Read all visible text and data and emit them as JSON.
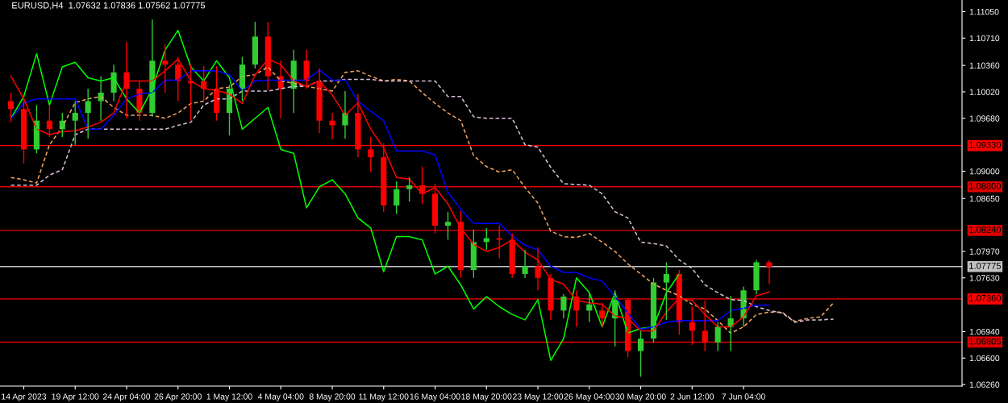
{
  "chart_data": {
    "type": "candlestick",
    "title": "EURUSD,H4  1.07632 1.07836 1.07562 1.07775",
    "categories": [
      null,
      "14 Apr 2023",
      null,
      null,
      null,
      "19 Apr 12:00",
      null,
      null,
      null,
      "24 Apr 04:00",
      null,
      null,
      null,
      "26 Apr 20:00",
      null,
      null,
      null,
      "1 May 12:00",
      null,
      null,
      null,
      "4 May 04:00",
      null,
      null,
      null,
      "8 May 20:00",
      null,
      null,
      null,
      "11 May 12:00",
      null,
      null,
      null,
      "16 May 04:00",
      null,
      null,
      null,
      "18 May 20:00",
      null,
      null,
      null,
      "23 May 12:00",
      null,
      null,
      null,
      "26 May 04:00",
      null,
      null,
      null,
      "30 May 20:00",
      null,
      null,
      null,
      "2 Jun 12:00",
      null,
      null,
      null,
      "7 Jun 04:00",
      null,
      null,
      null,
      null,
      null,
      null,
      null
    ],
    "colors": [
      "#ff0000",
      "#ff0000",
      "#32cd32",
      "#ff0000",
      "#32cd32",
      "#32cd32",
      "#32cd32",
      "#32cd32",
      "#32cd32",
      "#ff0000",
      "#ff0000",
      "#32cd32",
      "#ff0000",
      "#ff0000",
      "#ff0000",
      "#ff0000",
      "#ff0000",
      "#32cd32",
      "#32cd32",
      "#32cd32",
      "#ff0000",
      "#ff0000",
      "#32cd32",
      "#ff0000",
      "#ff0000",
      "#ff0000",
      "#32cd32",
      "#ff0000",
      "#ff0000",
      "#ff0000",
      "#32cd32",
      "#32cd32",
      "#ff0000",
      "#ff0000",
      "#32cd32",
      "#ff0000",
      "#32cd32",
      "#32cd32",
      "#ff0000",
      "#ff0000",
      "#32cd32",
      "#ff0000",
      "#ff0000",
      "#32cd32",
      "#ff0000",
      "#32cd32",
      "#ff0000",
      "#32cd32",
      "#ff0000",
      "#32cd32",
      "#32cd32",
      "#32cd32",
      "#ff0000",
      "#ff0000",
      "#ff0000",
      "#32cd32",
      "#32cd32",
      "#32cd32",
      "#32cd32",
      "#ff0000",
      null,
      null,
      null,
      null,
      null
    ],
    "ohlc": [
      [
        1.099,
        1.1001,
        1.0963,
        1.098
      ],
      [
        1.098,
        1.0996,
        1.091,
        1.0928
      ],
      [
        1.0928,
        1.0985,
        1.0923,
        1.0965
      ],
      [
        1.0965,
        1.0985,
        1.0944,
        1.0954
      ],
      [
        1.0954,
        1.0975,
        1.0944,
        1.0965
      ],
      [
        1.0965,
        1.099,
        1.0934,
        1.0975
      ],
      [
        1.0975,
        1.1006,
        1.0942,
        1.099
      ],
      [
        1.099,
        1.1022,
        1.0965,
        1.1001
      ],
      [
        1.1001,
        1.1037,
        1.099,
        1.1027
      ],
      [
        1.1027,
        1.1066,
        1.0968,
        1.1006
      ],
      [
        1.1006,
        1.1016,
        1.0965,
        1.0975
      ],
      [
        1.0975,
        1.1095,
        1.097,
        1.1042
      ],
      [
        1.1042,
        1.1063,
        1.1001,
        1.1037
      ],
      [
        1.1037,
        1.1047,
        1.099,
        1.1016
      ],
      [
        1.1016,
        1.1037,
        1.0965,
        1.1013
      ],
      [
        1.1016,
        1.1035,
        1.099,
        1.1006
      ],
      [
        1.1006,
        1.1035,
        1.0965,
        1.0975
      ],
      [
        1.0975,
        1.1011,
        1.0946,
        1.1006
      ],
      [
        1.1006,
        1.1047,
        1.099,
        1.1037
      ],
      [
        1.1037,
        1.1092,
        1.1032,
        1.1073
      ],
      [
        1.1073,
        1.1092,
        1.1004,
        1.1022
      ],
      [
        1.1022,
        1.1042,
        1.0968,
        1.1006
      ],
      [
        1.1006,
        1.1056,
        1.0975,
        1.1042
      ],
      [
        1.1042,
        1.1056,
        1.1006,
        1.1016
      ],
      [
        1.1016,
        1.1032,
        1.0949,
        1.0965
      ],
      [
        1.0965,
        1.0975,
        1.0941,
        1.0959
      ],
      [
        1.0959,
        1.1003,
        1.0942,
        1.0975
      ],
      [
        1.0975,
        1.0999,
        1.0918,
        1.0928
      ],
      [
        1.0928,
        1.0944,
        1.0899,
        1.0918
      ],
      [
        1.0918,
        1.0936,
        1.0848,
        1.0856
      ],
      [
        1.0856,
        1.0887,
        1.0845,
        1.0877
      ],
      [
        1.0877,
        1.0892,
        1.0861,
        1.0882
      ],
      [
        1.0882,
        1.0906,
        1.0858,
        1.0871
      ],
      [
        1.0871,
        1.0884,
        1.082,
        1.083
      ],
      [
        1.083,
        1.0848,
        1.0812,
        1.0835
      ],
      [
        1.0835,
        1.0849,
        1.0763,
        1.0773
      ],
      [
        1.0773,
        1.0825,
        1.0763,
        1.0809
      ],
      [
        1.0809,
        1.0827,
        1.0799,
        1.0814
      ],
      [
        1.0814,
        1.083,
        1.0788,
        1.0812
      ],
      [
        1.0812,
        1.082,
        1.0763,
        1.0768
      ],
      [
        1.0768,
        1.0799,
        1.0763,
        1.0778
      ],
      [
        1.0778,
        1.0802,
        1.0747,
        1.0763
      ],
      [
        1.0763,
        1.0768,
        1.0709,
        1.0721
      ],
      [
        1.0721,
        1.0742,
        1.0711,
        1.0739
      ],
      [
        1.0739,
        1.0747,
        1.07,
        1.0721
      ],
      [
        1.0721,
        1.0744,
        1.0706,
        1.0729
      ],
      [
        1.0721,
        1.0731,
        1.07,
        1.0711
      ],
      [
        1.0711,
        1.0747,
        1.0675,
        1.0735
      ],
      [
        1.0735,
        1.0737,
        1.0661,
        1.0669
      ],
      [
        1.0669,
        1.0695,
        1.0636,
        1.0685
      ],
      [
        1.0685,
        1.0763,
        1.068,
        1.0757
      ],
      [
        1.0757,
        1.0783,
        1.0709,
        1.0768
      ],
      [
        1.0768,
        1.0773,
        1.069,
        1.0706
      ],
      [
        1.0706,
        1.0726,
        1.0677,
        1.0695
      ],
      [
        1.0695,
        1.0734,
        1.0669,
        1.068
      ],
      [
        1.068,
        1.0706,
        1.0669,
        1.07
      ],
      [
        1.07,
        1.074,
        1.0669,
        1.0711
      ],
      [
        1.0711,
        1.0752,
        1.07,
        1.0747
      ],
      [
        1.0747,
        1.0786,
        1.0742,
        1.0783
      ],
      [
        1.0783,
        1.0786,
        1.0755,
        1.0777
      ],
      null,
      null,
      null,
      null,
      null
    ],
    "series": [
      {
        "type": "line",
        "color": "#f4a460",
        "line_style": "dashed",
        "values": [
          1.0892,
          1.0889,
          1.0885,
          1.0934,
          1.0957,
          1.0988,
          1.0993,
          1.0996,
          1.0982,
          1.0972,
          1.0972,
          1.0972,
          1.0968,
          1.0975,
          1.0987,
          1.099,
          1.1006,
          1.1008,
          1.1022,
          1.1024,
          1.1034,
          1.1016,
          1.1013,
          1.1009,
          1.1006,
          1.1003,
          1.1027,
          1.1029,
          1.1022,
          1.1016,
          1.1018,
          1.1016,
          1.1001,
          1.0987,
          1.0975,
          1.0965,
          1.092,
          1.0906,
          1.0899,
          1.0902,
          1.0879,
          1.0859,
          1.0823,
          1.0816,
          1.0815,
          1.082,
          1.0809,
          1.0797,
          1.0781,
          1.0768,
          1.0755,
          1.0747,
          1.074,
          1.0729,
          1.0723,
          1.0708,
          1.0692,
          1.07,
          1.0716,
          1.0719,
          1.0719,
          1.0707,
          1.0711,
          1.0713,
          1.0731
        ]
      },
      {
        "type": "line",
        "color": "#d8bfd8",
        "line_style": "dashed",
        "values": [
          1.0882,
          1.0882,
          1.0882,
          1.0895,
          1.0902,
          1.0947,
          1.0954,
          1.0954,
          1.0954,
          1.0954,
          1.0954,
          1.0954,
          1.0954,
          1.0959,
          1.0963,
          1.0985,
          1.0993,
          1.0993,
          1.1003,
          1.1003,
          1.1003,
          1.1006,
          1.1009,
          1.1009,
          1.1016,
          1.1016,
          1.1018,
          1.1018,
          1.1018,
          1.1016,
          1.1016,
          1.1016,
          1.1016,
          1.1016,
          1.0996,
          1.0996,
          1.097,
          1.0968,
          1.0968,
          1.0968,
          1.0934,
          1.0931,
          1.0905,
          1.0884,
          1.0883,
          1.0882,
          1.0871,
          1.0848,
          1.084,
          1.0809,
          1.0807,
          1.0804,
          1.0786,
          1.0775,
          1.0754,
          1.0744,
          1.0735,
          1.0734,
          1.0726,
          1.0721,
          1.0718,
          1.0706,
          1.0709,
          1.0709,
          1.071
        ]
      },
      {
        "type": "line",
        "color": "#00ff00",
        "values": [
          1.0968,
          1.0996,
          1.1051,
          1.0985,
          1.1034,
          1.104,
          1.102,
          1.1016,
          1.102,
          1.0993,
          1.0975,
          1.1006,
          1.1056,
          1.1081,
          1.1034,
          1.1016,
          1.1042,
          1.102,
          1.0954,
          1.0968,
          1.0982,
          1.0928,
          1.0923,
          1.0853,
          1.088,
          1.0889,
          1.0871,
          1.084,
          1.0827,
          1.0771,
          1.0816,
          1.0816,
          1.0812,
          1.0768,
          1.0778,
          1.0754,
          1.0723,
          1.0739,
          1.0726,
          1.0716,
          1.0709,
          1.0735,
          1.0657,
          1.0685,
          1.0763,
          1.0744,
          1.07,
          1.0744,
          1.0692,
          1.0698,
          1.07,
          1.0744,
          1.0768,
          null,
          null,
          null,
          null,
          null,
          null,
          null,
          null,
          null,
          null,
          null,
          null
        ]
      },
      {
        "type": "line",
        "color": "#0000ff",
        "values": [
          1.0967,
          1.0988,
          1.0993,
          1.0993,
          1.0993,
          1.0993,
          1.0954,
          1.0954,
          1.0972,
          1.0993,
          1.0999,
          1.1001,
          1.1017,
          1.1017,
          1.1029,
          1.1029,
          1.1029,
          1.1024,
          1.1003,
          1.1016,
          1.1017,
          1.1017,
          1.1017,
          1.1017,
          1.103,
          1.1017,
          1.1017,
          1.099,
          1.0977,
          1.0965,
          1.0926,
          1.0926,
          1.0926,
          1.0921,
          1.0873,
          1.0851,
          1.0833,
          1.0833,
          1.0833,
          1.0817,
          1.0805,
          1.0799,
          1.0778,
          1.077,
          1.077,
          1.0763,
          1.0759,
          1.0739,
          1.0718,
          1.0697,
          1.07,
          1.0706,
          1.0708,
          1.0708,
          1.0708,
          1.0708,
          1.0721,
          1.0724,
          1.0728,
          1.0728,
          null,
          null,
          null,
          null,
          null
        ]
      },
      {
        "type": "line",
        "color": "#ff0000",
        "values": [
          1.1022,
          1.0993,
          1.0954,
          1.0947,
          1.0951,
          1.0952,
          1.0957,
          1.0963,
          1.0975,
          1.1016,
          1.1016,
          1.1016,
          1.1029,
          1.1044,
          1.1016,
          1.1006,
          1.1004,
          1.0999,
          1.0987,
          1.1024,
          1.1044,
          1.1037,
          1.1016,
          1.1009,
          1.1016,
          1.0998,
          1.0972,
          1.0988,
          1.0954,
          1.093,
          1.0892,
          1.089,
          1.0871,
          1.0879,
          1.0858,
          1.0827,
          1.0806,
          1.0797,
          1.0802,
          1.0812,
          1.0796,
          1.0786,
          1.0761,
          1.0755,
          1.0734,
          1.0731,
          1.0729,
          1.0714,
          1.0711,
          1.0695,
          1.0695,
          1.0719,
          1.0737,
          1.0734,
          1.0716,
          1.07,
          1.07,
          1.0713,
          1.074,
          1.0745,
          null,
          null,
          null,
          null,
          null
        ]
      }
    ],
    "ylim": [
      1.0624,
      1.112
    ],
    "yticks": [
      {
        "value": 1.1105,
        "label": "1.11050"
      },
      {
        "value": 1.1071,
        "label": "1.10710"
      },
      {
        "value": 1.1036,
        "label": "1.10360"
      },
      {
        "value": 1.1002,
        "label": "1.10020"
      },
      {
        "value": 1.0968,
        "label": "1.09680"
      },
      {
        "value": 1.09,
        "label": "1.09000"
      },
      {
        "value": 1.0865,
        "label": "1.08650"
      },
      {
        "value": 1.0797,
        "label": "1.07970"
      },
      {
        "value": 1.0763,
        "label": "1.07630"
      },
      {
        "value": 1.0694,
        "label": "1.06940"
      },
      {
        "value": 1.066,
        "label": "1.06600"
      },
      {
        "value": 1.0626,
        "label": "1.06260"
      }
    ],
    "ref_lines": [
      {
        "axis": "y",
        "value": 1.0933,
        "label": "1.09330",
        "color": "#ff0000"
      },
      {
        "axis": "y",
        "value": 1.088,
        "label": "1.08800",
        "color": "#e00000"
      },
      {
        "axis": "y",
        "value": 1.0824,
        "label": "1.08240",
        "color": "#e00000"
      },
      {
        "axis": "y",
        "value": 1.07775,
        "label": "1.07775",
        "color": "#c0c0c0"
      },
      {
        "axis": "y",
        "value": 1.0736,
        "label": "1.07360",
        "color": "#ff0000"
      },
      {
        "axis": "y",
        "value": 1.06805,
        "label": "1.06805",
        "color": "#e00000"
      }
    ],
    "grid": false,
    "legend": false
  }
}
